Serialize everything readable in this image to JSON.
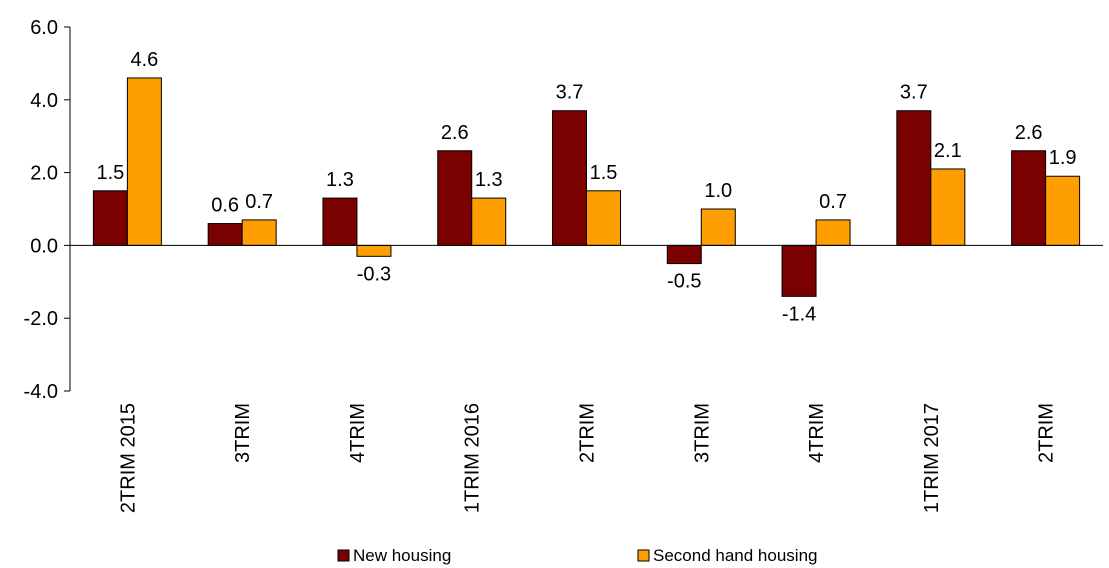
{
  "chart_data": {
    "type": "bar",
    "title": "",
    "xlabel": "",
    "ylabel": "",
    "ylim": [
      -4.0,
      6.0
    ],
    "yticks": [
      "6.0",
      "4.0",
      "2.0",
      "0.0",
      "-2.0",
      "-4.0"
    ],
    "ytick_values": [
      6,
      4,
      2,
      0,
      -2,
      -4
    ],
    "grid": false,
    "legend_position": "bottom",
    "categories": [
      "2TRIM 2015",
      "3TRIM",
      "4TRIM",
      "1TRIM 2016",
      "2TRIM",
      "3TRIM",
      "4TRIM",
      "1TRIM 2017",
      "2TRIM"
    ],
    "series": [
      {
        "name": "New housing",
        "color": "#7b0000",
        "values": [
          1.5,
          0.6,
          1.3,
          2.6,
          3.7,
          -0.5,
          -1.4,
          3.7,
          2.6
        ],
        "labels": [
          "1.5",
          "0.6",
          "1.3",
          "2.6",
          "3.7",
          "-0.5",
          "-1.4",
          "3.7",
          "2.6"
        ]
      },
      {
        "name": "Second hand housing",
        "color": "#ff9e00",
        "values": [
          4.6,
          0.7,
          -0.3,
          1.3,
          1.5,
          1.0,
          0.7,
          2.1,
          1.9
        ],
        "labels": [
          "4.6",
          "0.7",
          "-0.3",
          "1.3",
          "1.5",
          "1.0",
          "0.7",
          "2.1",
          "1.9"
        ]
      }
    ]
  }
}
